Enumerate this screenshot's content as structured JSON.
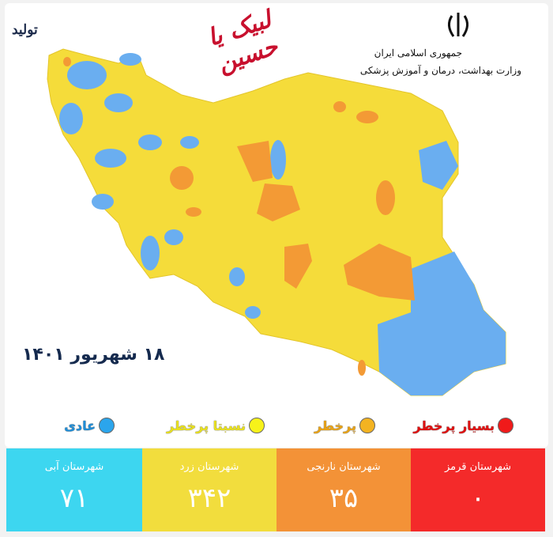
{
  "header": {
    "line1": "جمهوری اسلامی ایران",
    "line2": "وزارت بهداشت، درمان و آموزش پزشکی",
    "logo_center": "لبیک یا حسین",
    "logo_left": "تولید"
  },
  "date": "۱۸ شهریور ۱۴۰۱",
  "colors": {
    "red": "#f42a2a",
    "orange": "#f39237",
    "yellow": "#f2dd3d",
    "blue": "#3dd6f0",
    "map_yellow": "#f5dc3a",
    "map_orange": "#f39a35",
    "map_blue": "#6aaef0"
  },
  "legend": [
    {
      "label": "بسیار پرخطر",
      "color": "#f01a1a"
    },
    {
      "label": "پرخطر",
      "color": "#f3b321"
    },
    {
      "label": "نسبتا پرخطر",
      "color": "#f7f21a"
    },
    {
      "label": "عادی",
      "color": "#2ba5ec"
    }
  ],
  "counts": [
    {
      "label": "شهرستان قرمز",
      "value": "۰"
    },
    {
      "label": "شهرستان نارنجی",
      "value": "۳۵"
    },
    {
      "label": "شهرستان زرد",
      "value": "۳۴۲"
    },
    {
      "label": "شهرستان آبی",
      "value": "۷۱"
    }
  ]
}
